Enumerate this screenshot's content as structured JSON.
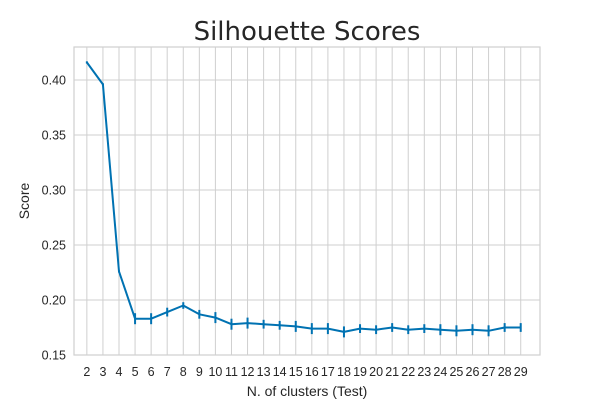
{
  "chart_data": {
    "type": "line",
    "title": "Silhouette Scores",
    "xlabel": "N. of clusters (Test)",
    "ylabel": "Score",
    "x": [
      2,
      3,
      4,
      5,
      6,
      7,
      8,
      9,
      10,
      11,
      12,
      13,
      14,
      15,
      16,
      17,
      18,
      19,
      20,
      21,
      22,
      23,
      24,
      25,
      26,
      27,
      28,
      29
    ],
    "series": [
      {
        "values": [
          0.416,
          0.396,
          0.226,
          0.183,
          0.183,
          0.189,
          0.195,
          0.187,
          0.184,
          0.178,
          0.179,
          0.178,
          0.177,
          0.176,
          0.174,
          0.174,
          0.171,
          0.174,
          0.173,
          0.175,
          0.173,
          0.174,
          0.173,
          0.172,
          0.173,
          0.172,
          0.175,
          0.175
        ],
        "errors": [
          0.001,
          0.001,
          0.001,
          0.005,
          0.005,
          0.004,
          0.003,
          0.004,
          0.005,
          0.005,
          0.005,
          0.004,
          0.004,
          0.005,
          0.005,
          0.005,
          0.005,
          0.004,
          0.004,
          0.004,
          0.004,
          0.004,
          0.005,
          0.005,
          0.005,
          0.005,
          0.004,
          0.004
        ],
        "color": "#0072b2"
      }
    ],
    "xlim": [
      1.2,
      30.2
    ],
    "ylim": [
      0.15,
      0.43
    ],
    "yticks": [
      0.15,
      0.2,
      0.25,
      0.3,
      0.35,
      0.4
    ],
    "ytick_labels": [
      "0.15",
      "0.20",
      "0.25",
      "0.30",
      "0.35",
      "0.40"
    ],
    "grid": true,
    "legend": "none"
  }
}
